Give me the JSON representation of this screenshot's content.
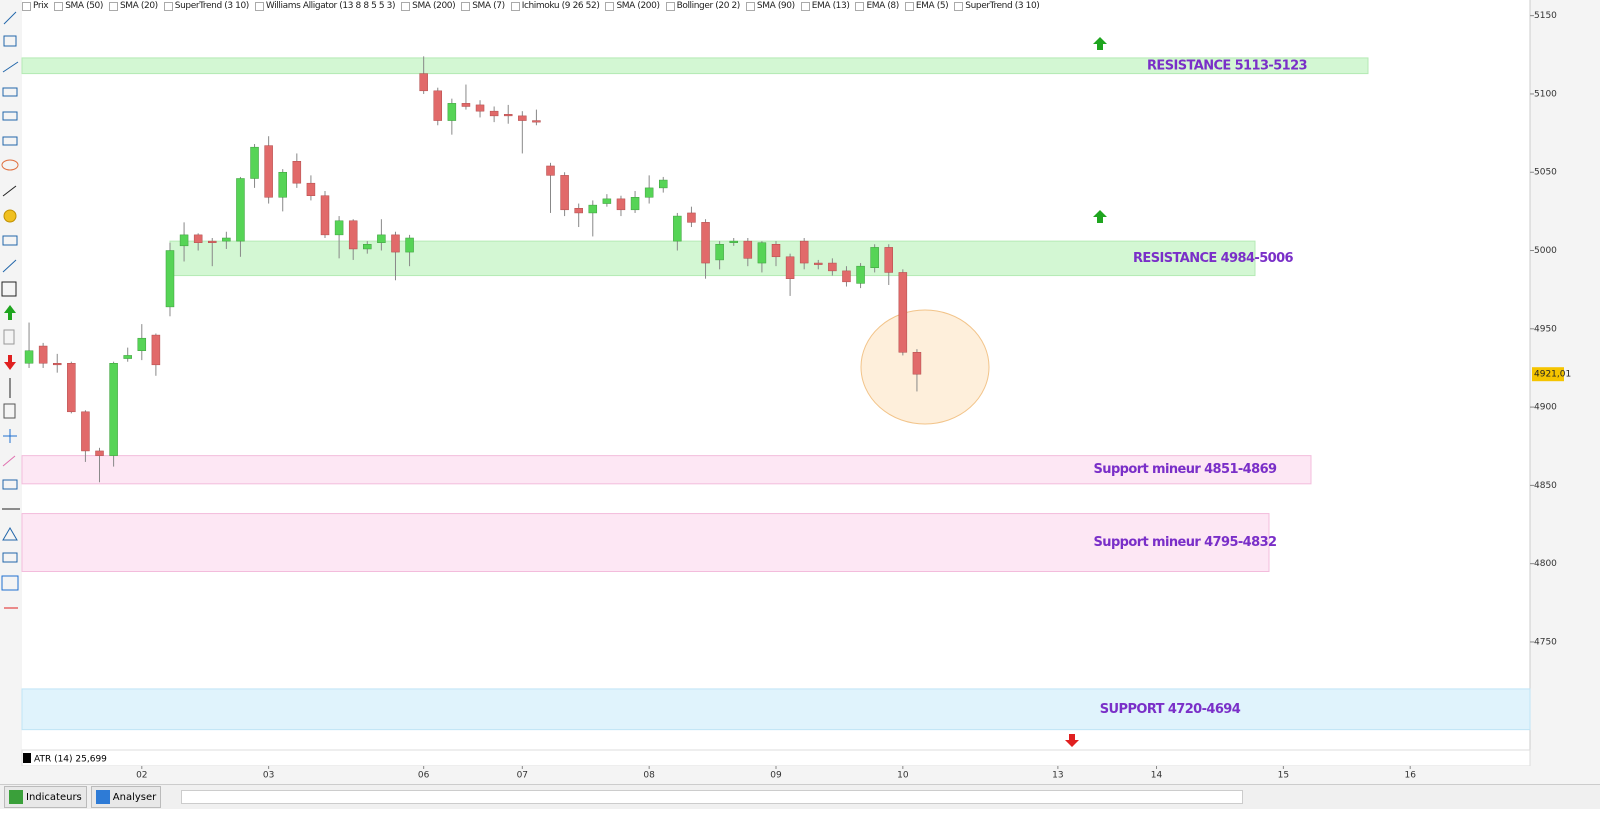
{
  "toolbar": {
    "indicators": [
      "Prix",
      "SMA (50)",
      "SMA (20)",
      "SuperTrend (3 10)",
      "Williams Alligator (13 8 8 5 5 3)",
      "SMA (200)",
      "SMA (7)",
      "Ichimoku (9 26 52)",
      "SMA (200)",
      "Bollinger (20 2)",
      "SMA (90)",
      "EMA (13)",
      "EMA (8)",
      "EMA (5)",
      "SuperTrend (3 10)"
    ]
  },
  "chart_data": {
    "type": "candlestick",
    "x": [
      0,
      1,
      2,
      3,
      4,
      5,
      6,
      7,
      8,
      9,
      10,
      11,
      12,
      13,
      14,
      15,
      16,
      17,
      18,
      19,
      20,
      21,
      22,
      23,
      24,
      25,
      26,
      27,
      28,
      29,
      30,
      31,
      32,
      33,
      34,
      35,
      36,
      37,
      38,
      39,
      40,
      41,
      42,
      43,
      44,
      45,
      46,
      47,
      48,
      49,
      50,
      51,
      52,
      53,
      54,
      55,
      56,
      57,
      58,
      59,
      60,
      61,
      62,
      63
    ],
    "open": [
      4928,
      4939,
      4928,
      4928,
      4897,
      4872,
      4869,
      4931,
      4936,
      4946,
      4964,
      5003,
      5010,
      5006,
      5006,
      5006,
      5046,
      5067,
      5034,
      5057,
      5043,
      5035,
      5010,
      5019,
      5001,
      5005,
      5010,
      4999,
      5113,
      5102,
      5083,
      5094,
      5093,
      5089,
      5087,
      5086,
      5083,
      5054,
      5048,
      5027,
      5024,
      5030,
      5033,
      5026,
      5034,
      5040,
      5006,
      5024,
      5018,
      4994,
      5005,
      5006,
      4992,
      5004,
      4996,
      5006,
      4992,
      4992,
      4987,
      4979,
      4989,
      5002,
      4986,
      4935
    ],
    "high": [
      4954,
      4941,
      4934,
      4929,
      4898,
      4874,
      4929,
      4938,
      4953,
      4947,
      5005,
      5018,
      5011,
      5008,
      5012,
      5047,
      5068,
      5073,
      5052,
      5062,
      5048,
      5038,
      5022,
      5020,
      5006,
      5020,
      5012,
      5010,
      5124,
      5104,
      5097,
      5106,
      5096,
      5092,
      5093,
      5089,
      5090,
      5056,
      5050,
      5030,
      5032,
      5036,
      5035,
      5038,
      5048,
      5047,
      5024,
      5028,
      5020,
      5006,
      5008,
      5008,
      5006,
      5006,
      4998,
      5008,
      4994,
      4995,
      4990,
      4992,
      5004,
      5004,
      4988,
      4937
    ],
    "low": [
      4925,
      4925,
      4922,
      4896,
      4865,
      4852,
      4862,
      4929,
      4930,
      4920,
      4958,
      4993,
      5000,
      4990,
      5001,
      4996,
      5040,
      5030,
      5025,
      5040,
      5032,
      5008,
      4995,
      4994,
      4998,
      5000,
      4981,
      4990,
      5100,
      5080,
      5074,
      5090,
      5085,
      5082,
      5081,
      5062,
      5080,
      5024,
      5022,
      5015,
      5009,
      5028,
      5022,
      5024,
      5030,
      5037,
      5000,
      5015,
      4982,
      4988,
      5003,
      4990,
      4986,
      4990,
      4971,
      4988,
      4988,
      4984,
      4977,
      4976,
      4986,
      4978,
      4933,
      4910
    ],
    "close": [
      4936,
      4928,
      4927,
      4897,
      4872,
      4869,
      4928,
      4933,
      4944,
      4927,
      5000,
      5010,
      5005,
      5005,
      5008,
      5046,
      5066,
      5034,
      5050,
      5043,
      5035,
      5010,
      5019,
      5001,
      5004,
      5010,
      4999,
      5008,
      5102,
      5083,
      5094,
      5092,
      5089,
      5086,
      5086,
      5083,
      5082,
      5048,
      5026,
      5024,
      5029,
      5033,
      5026,
      5034,
      5040,
      5045,
      5022,
      5018,
      4992,
      5004,
      5006,
      4995,
      5005,
      4996,
      4982,
      4992,
      4991,
      4987,
      4980,
      4990,
      5002,
      4986,
      4935,
      4921.01
    ],
    "up_color": "#56d456",
    "down_color": "#e16a6a",
    "xlim": [
      -0.5,
      106.5
    ],
    "xticks": [
      {
        "value": 8,
        "label": "02"
      },
      {
        "value": 17,
        "label": "03"
      },
      {
        "value": 28,
        "label": "06"
      },
      {
        "value": 35,
        "label": "07"
      },
      {
        "value": 44,
        "label": "08"
      },
      {
        "value": 53,
        "label": "09"
      },
      {
        "value": 62,
        "label": "10"
      },
      {
        "value": 73,
        "label": "13"
      },
      {
        "value": 80,
        "label": "14"
      },
      {
        "value": 89,
        "label": "15"
      },
      {
        "value": 98,
        "label": "16"
      }
    ],
    "ylim": [
      4681,
      5160
    ],
    "yticks": [
      4750,
      4800,
      4850,
      4900,
      4950,
      5000,
      5050,
      5100,
      5150
    ],
    "zones": [
      {
        "label": "RESISTANCE  5113-5123",
        "low": 5113,
        "high": 5123,
        "color": "#d3f7d3",
        "border": "#b4eab4"
      },
      {
        "label": "RESISTANCE 4984-5006",
        "low": 4984,
        "high": 5006,
        "color": "#d3f7d3",
        "border": "#b4eab4"
      },
      {
        "label": "Support mineur 4851-4869",
        "low": 4851,
        "high": 4869,
        "color": "#fde7f4",
        "border": "#f3bcdc"
      },
      {
        "label": "Support mineur 4795-4832",
        "low": 4795,
        "high": 4832,
        "color": "#fde7f4",
        "border": "#f3bcdc"
      },
      {
        "label": "SUPPORT 4720-4694",
        "low": 4694,
        "high": 4720,
        "color": "#e0f3fc",
        "border": "#bfe4f6"
      }
    ],
    "last_price": {
      "value": 4921.01,
      "label": "4921,01"
    }
  },
  "indicator_panel": {
    "label": "ATR (14) 25,699"
  },
  "bottom_bar": {
    "indicators_button": "Indicateurs",
    "analyze_button": "Analyser"
  }
}
